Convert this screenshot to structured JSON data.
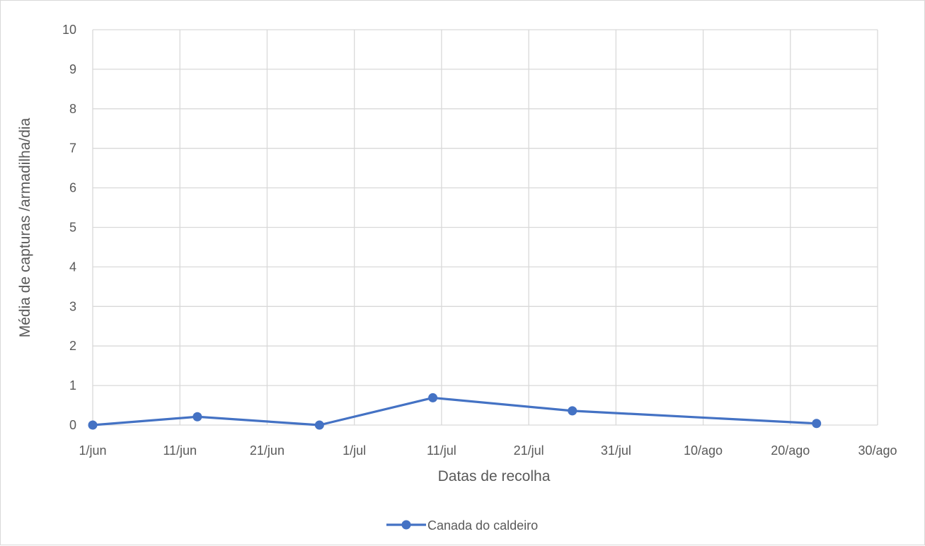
{
  "chart_data": {
    "type": "line",
    "title": "",
    "xlabel": "Datas de recolha",
    "ylabel": "Média de capturas /armadilha/dia",
    "x_ticks": [
      "1/jun",
      "11/jun",
      "21/jun",
      "1/jul",
      "11/jul",
      "21/jul",
      "31/jul",
      "10/ago",
      "20/ago",
      "30/ago"
    ],
    "xlim": [
      "1/jun",
      "30/ago"
    ],
    "y_ticks": [
      0,
      1,
      2,
      3,
      4,
      5,
      6,
      7,
      8,
      9,
      10
    ],
    "ylim": [
      0,
      10
    ],
    "grid": true,
    "legend_position": "bottom",
    "series": [
      {
        "name": "Canada do caldeiro",
        "color": "#4472c4",
        "marker": "circle",
        "points": [
          {
            "x": "1/jun",
            "y": 0.0
          },
          {
            "x": "13/jun",
            "y": 0.21
          },
          {
            "x": "27/jun",
            "y": 0.0
          },
          {
            "x": "10/jul",
            "y": 0.69
          },
          {
            "x": "26/jul",
            "y": 0.36
          },
          {
            "x": "23/ago",
            "y": 0.04
          }
        ]
      }
    ]
  }
}
